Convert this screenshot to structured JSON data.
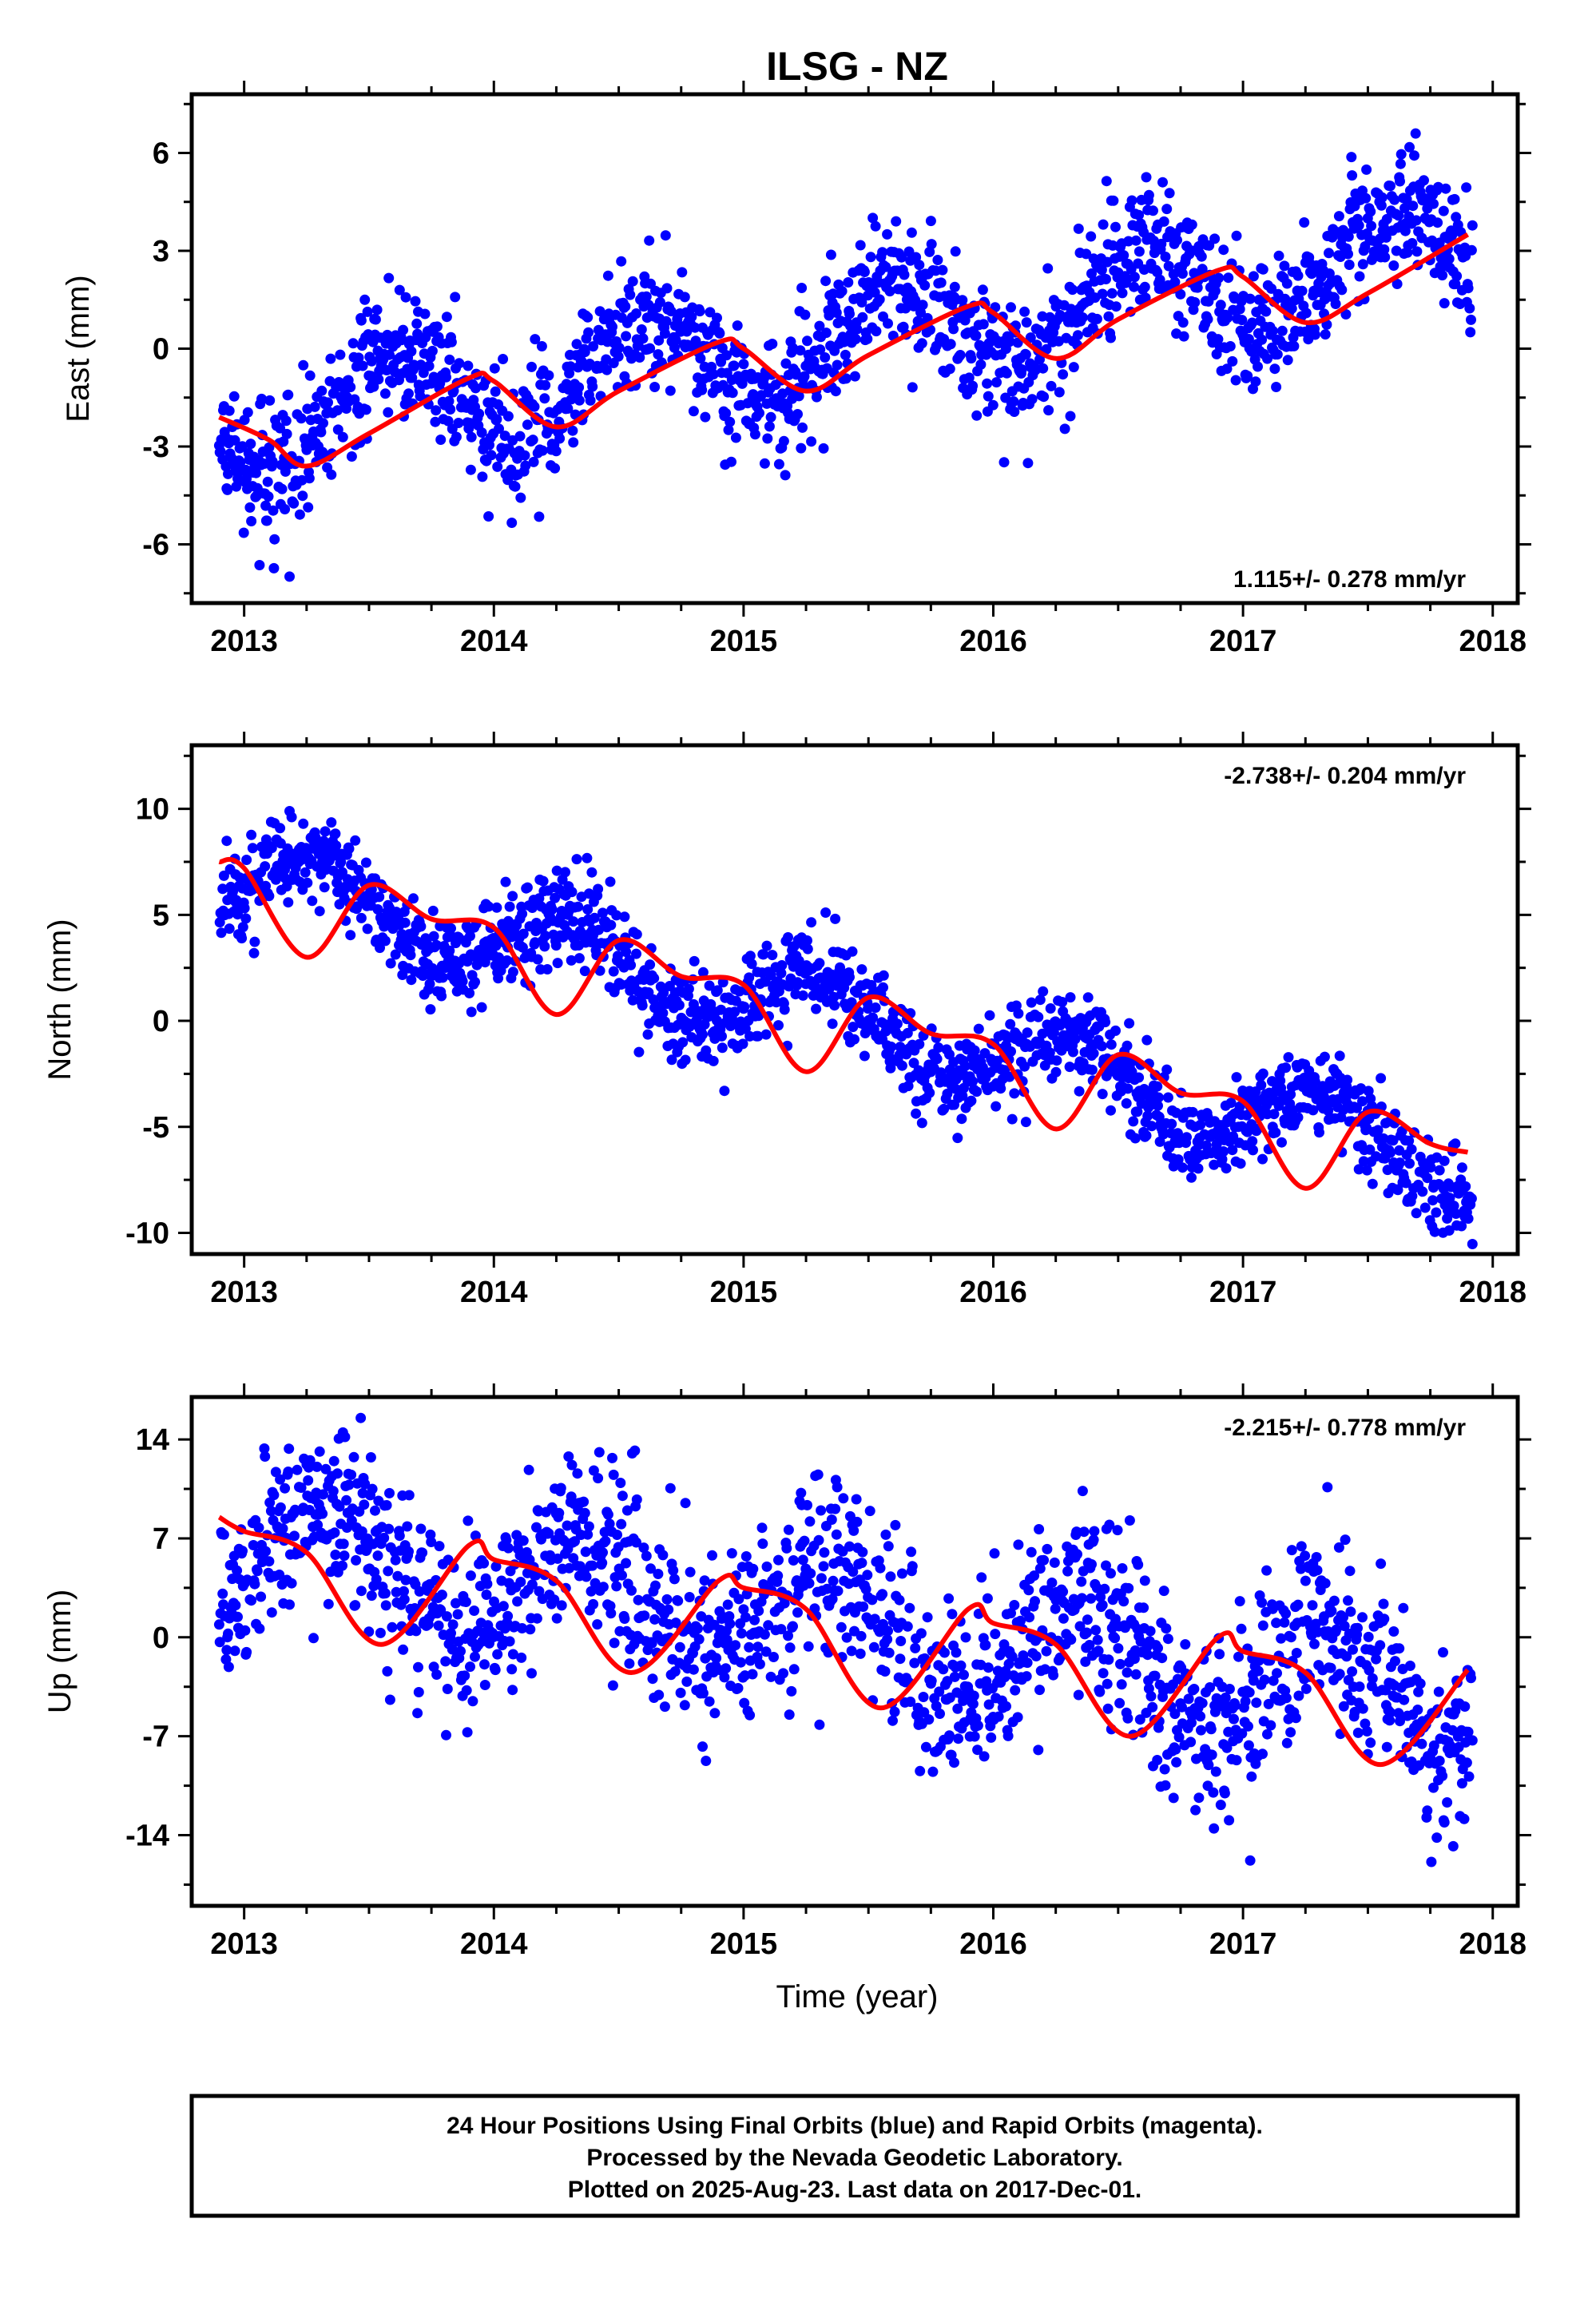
{
  "title": "ILSG - NZ",
  "xlabel": "Time (year)",
  "x_ticks": [
    "2013",
    "2014",
    "2015",
    "2016",
    "2017",
    "2018"
  ],
  "chart_data": [
    {
      "type": "scatter",
      "component": "east",
      "ylabel": "East (mm)",
      "xlim": [
        2012.79,
        2018.1
      ],
      "ylim": [
        -7.8,
        7.8
      ],
      "y_ticks": [
        6,
        3,
        0,
        -3,
        -6
      ],
      "y_tick_labels": [
        "6",
        "3",
        "0",
        "-3",
        "-6"
      ],
      "rate_label": "1.115+/- 0.278 mm/yr",
      "rate_placement": "bottom-right",
      "rate_mm_per_yr": 1.115,
      "seasonal_amplitude": 1.5,
      "seasonal_phase": 0.35,
      "trend_offset": -2.5,
      "scatter": 1.0,
      "series": [
        {
          "name": "Final Orbits",
          "color": "#0000ff"
        },
        {
          "name": "fit",
          "color": "#ff0000"
        }
      ],
      "fit_curve": {
        "x": [
          2012.9,
          2013.1,
          2013.25,
          2013.5,
          2013.9,
          2014.0,
          2014.25,
          2014.5,
          2014.9,
          2015.0,
          2015.25,
          2015.5,
          2015.9,
          2016.0,
          2016.25,
          2016.5,
          2016.9,
          2017.0,
          2017.25,
          2017.5,
          2017.9
        ],
        "y": [
          -2.1,
          -2.8,
          -3.6,
          -2.6,
          -0.9,
          -1.0,
          -2.4,
          -1.3,
          0.2,
          0.0,
          -1.3,
          -0.2,
          1.3,
          1.1,
          -0.3,
          0.9,
          2.4,
          2.2,
          0.8,
          1.7,
          3.5
        ]
      }
    },
    {
      "type": "scatter",
      "component": "north",
      "ylabel": "North (mm)",
      "xlim": [
        2012.79,
        2018.1
      ],
      "ylim": [
        -11,
        13
      ],
      "y_ticks": [
        10,
        5,
        0,
        -5,
        -10
      ],
      "y_tick_labels": [
        "10",
        "5",
        "0",
        "-5",
        "-10"
      ],
      "rate_label": "-2.738+/- 0.204 mm/yr",
      "rate_placement": "top-right",
      "rate_mm_per_yr": -2.738,
      "seasonal_amplitude": 1.8,
      "seasonal_phase": 0.05,
      "trend_offset": 7.0,
      "scatter": 1.1,
      "series": [
        {
          "name": "Final Orbits",
          "color": "#0000ff"
        },
        {
          "name": "fit",
          "color": "#ff0000"
        }
      ],
      "fit_curve": {
        "x": [
          2012.9,
          2013.0,
          2013.25,
          2013.5,
          2013.75,
          2014.0,
          2014.25,
          2014.5,
          2014.75,
          2015.0,
          2015.25,
          2015.5,
          2015.75,
          2016.0,
          2016.25,
          2016.5,
          2016.75,
          2017.0,
          2017.25,
          2017.5,
          2017.75,
          2017.9
        ],
        "y": [
          7.5,
          7.2,
          3.0,
          6.4,
          4.8,
          4.4,
          0.3,
          3.8,
          2.1,
          1.7,
          -2.4,
          1.1,
          -0.6,
          -1.1,
          -5.1,
          -1.6,
          -3.4,
          -3.8,
          -7.9,
          -4.3,
          -5.8,
          -6.2
        ]
      }
    },
    {
      "type": "scatter",
      "component": "up",
      "ylabel": "Up (mm)",
      "xlim": [
        2012.79,
        2018.1
      ],
      "ylim": [
        -19,
        17
      ],
      "y_ticks": [
        14,
        7,
        0,
        -7,
        -14
      ],
      "y_tick_labels": [
        "14",
        "7",
        "0",
        "-7",
        "-14"
      ],
      "rate_label": "-2.215+/- 0.778 mm/yr",
      "rate_placement": "top-right",
      "rate_mm_per_yr": -2.215,
      "seasonal_amplitude": 3.8,
      "seasonal_phase": 0.1,
      "trend_offset": 6.5,
      "scatter": 3.2,
      "series": [
        {
          "name": "Final Orbits",
          "color": "#0000ff"
        },
        {
          "name": "fit",
          "color": "#ff0000"
        }
      ],
      "fit_curve": {
        "x": [
          2012.9,
          2013.0,
          2013.25,
          2013.55,
          2013.9,
          2014.0,
          2014.25,
          2014.55,
          2014.9,
          2015.0,
          2015.25,
          2015.55,
          2015.9,
          2016.0,
          2016.25,
          2016.55,
          2016.9,
          2017.0,
          2017.25,
          2017.55,
          2017.9
        ],
        "y": [
          8.5,
          7.5,
          6.0,
          -0.5,
          6.5,
          5.5,
          4.0,
          -2.5,
          4.0,
          3.5,
          2.0,
          -5.0,
          2.0,
          1.0,
          -0.5,
          -7.0,
          0.0,
          -1.0,
          -2.5,
          -9.0,
          -2.3
        ]
      }
    }
  ],
  "footer": {
    "line1": "24 Hour Positions Using Final Orbits (blue) and Rapid Orbits (magenta).",
    "line2": "Processed by the Nevada Geodetic Laboratory.",
    "line3": "Plotted on 2025-Aug-23. Last data on 2017-Dec-01."
  },
  "colors": {
    "data_points": "#0000ff",
    "fit_line": "#ff0000",
    "frame": "#000000"
  }
}
